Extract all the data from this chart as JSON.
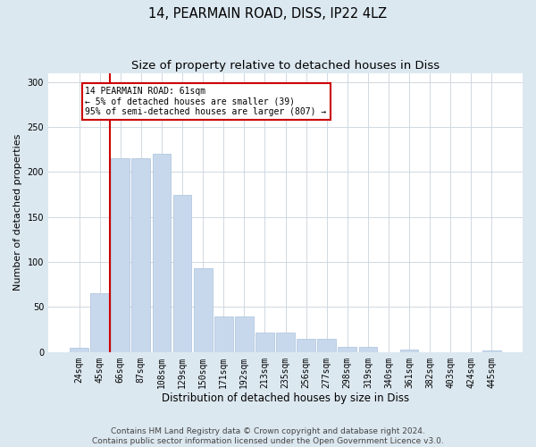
{
  "title": "14, PEARMAIN ROAD, DISS, IP22 4LZ",
  "subtitle": "Size of property relative to detached houses in Diss",
  "xlabel": "Distribution of detached houses by size in Diss",
  "ylabel": "Number of detached properties",
  "bar_labels": [
    "24sqm",
    "45sqm",
    "66sqm",
    "87sqm",
    "108sqm",
    "129sqm",
    "150sqm",
    "171sqm",
    "192sqm",
    "213sqm",
    "235sqm",
    "256sqm",
    "277sqm",
    "298sqm",
    "319sqm",
    "340sqm",
    "361sqm",
    "382sqm",
    "403sqm",
    "424sqm",
    "445sqm"
  ],
  "bar_values": [
    5,
    65,
    215,
    215,
    220,
    175,
    93,
    40,
    40,
    22,
    22,
    15,
    15,
    6,
    6,
    0,
    3,
    0,
    0,
    0,
    2
  ],
  "bar_color": "#c8d8ec",
  "bar_edge_color": "#a8c0dc",
  "vline_x_idx": 2,
  "vline_color": "#cc0000",
  "annotation_line1": "14 PEARMAIN ROAD: 61sqm",
  "annotation_line2": "← 5% of detached houses are smaller (39)",
  "annotation_line3": "95% of semi-detached houses are larger (807) →",
  "annotation_box_edgecolor": "#cc0000",
  "ylim": [
    0,
    310
  ],
  "yticks": [
    0,
    50,
    100,
    150,
    200,
    250,
    300
  ],
  "footer1": "Contains HM Land Registry data © Crown copyright and database right 2024.",
  "footer2": "Contains public sector information licensed under the Open Government Licence v3.0.",
  "bg_color": "#dce8f0",
  "plot_bg_color": "#ffffff",
  "title_fontsize": 10.5,
  "subtitle_fontsize": 9.5,
  "xlabel_fontsize": 8.5,
  "ylabel_fontsize": 8,
  "footer_fontsize": 6.5,
  "tick_fontsize": 7,
  "annotation_fontsize": 7
}
